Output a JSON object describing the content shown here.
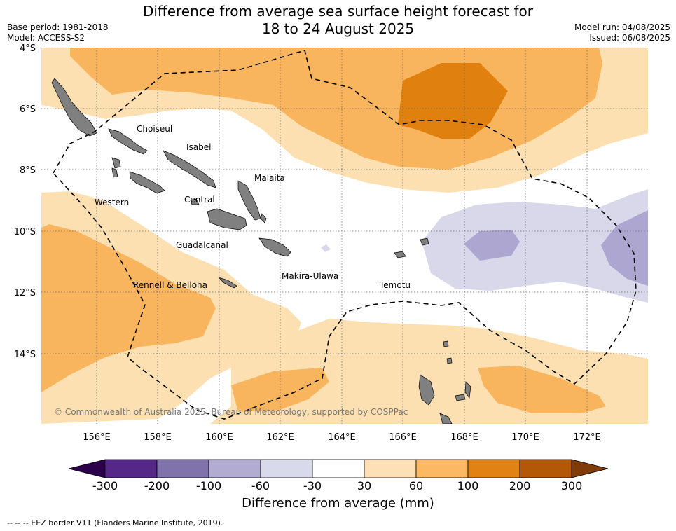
{
  "header": {
    "title_line1": "Difference from average sea surface height forecast for",
    "title_line2": "18 to 24 August 2025",
    "base_period": "Base period: 1981-2018",
    "model": "Model: ACCESS-S2",
    "model_run": "Model run: 04/08/2025",
    "issued": "Issued: 06/08/2025"
  },
  "map": {
    "lat_labels": [
      "4°S",
      "6°S",
      "8°S",
      "10°S",
      "12°S",
      "14°S"
    ],
    "lon_labels": [
      "156°E",
      "158°E",
      "160°E",
      "162°E",
      "164°E",
      "166°E",
      "168°E",
      "170°E",
      "172°E"
    ],
    "province_labels": [
      "Choiseul",
      "Isabel",
      "Malaita",
      "Western",
      "Central",
      "Guadalcanal",
      "Rennell & Bellona",
      "Makira-Ulawa",
      "Temotu"
    ],
    "copyright": "© Commonwealth of Australia 2025, Bureau of Meteorology, supported by COSPPac",
    "colors": {
      "land": "#808080",
      "c30_60": "#fde0b2",
      "c60_100": "#f9b45e",
      "c100_200": "#e0800e",
      "cneg60_30": "#d8d8ea",
      "cneg100_60": "#ada6d0"
    }
  },
  "colorbar": {
    "ticks": [
      "-300",
      "-200",
      "-100",
      "-60",
      "-30",
      "30",
      "60",
      "100",
      "200",
      "300"
    ],
    "colors": [
      "#542788",
      "#8073ac",
      "#b2abd2",
      "#d8daeb",
      "#ffffff",
      "#fee0b6",
      "#fdb863",
      "#e08214",
      "#b35806"
    ],
    "under_color": "#2d004b",
    "over_color": "#7f3b08",
    "title": "Difference from average (mm)"
  },
  "footer": {
    "eez_legend": "-- -- -- EEZ border V11 (Flanders Marine Institute, 2019)."
  }
}
